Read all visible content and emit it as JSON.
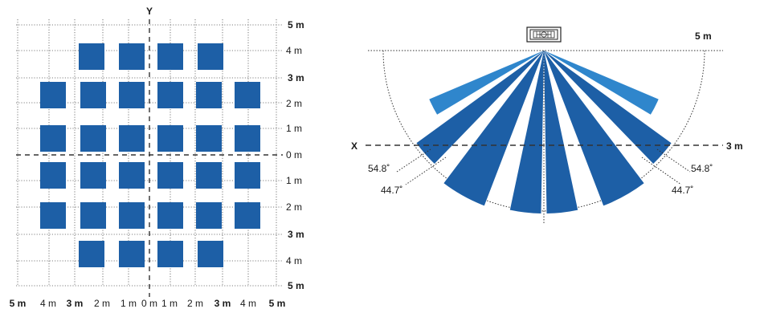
{
  "colors": {
    "zone": "#1d5fa6",
    "zone_light": "#2f86cc",
    "line": "#333333"
  },
  "top_view": {
    "y_axis_label": "Y",
    "row_labels": [
      {
        "text": "5 m",
        "bold": true
      },
      {
        "text": "4 m",
        "bold": false
      },
      {
        "text": "3 m",
        "bold": true
      },
      {
        "text": "2 m",
        "bold": false
      },
      {
        "text": "1 m",
        "bold": false
      },
      {
        "text": "0 m",
        "bold": false
      },
      {
        "text": "1 m",
        "bold": false
      },
      {
        "text": "2 m",
        "bold": false
      },
      {
        "text": "3 m",
        "bold": true
      },
      {
        "text": "4 m",
        "bold": false
      },
      {
        "text": "5 m",
        "bold": true
      }
    ],
    "column_labels": [
      {
        "text": "5 m",
        "bold": true
      },
      {
        "text": "4 m",
        "bold": false
      },
      {
        "text": "3 m",
        "bold": true
      },
      {
        "text": "2 m",
        "bold": false
      },
      {
        "text": "1 m",
        "bold": false
      },
      {
        "text": "0 m",
        "bold": false
      },
      {
        "text": "1 m",
        "bold": false
      },
      {
        "text": "2 m",
        "bold": false
      },
      {
        "text": "3 m",
        "bold": true
      },
      {
        "text": "4 m",
        "bold": false
      },
      {
        "text": "5 m",
        "bold": true
      }
    ],
    "zone_counts_per_row": [
      4,
      6,
      6,
      6,
      6,
      4
    ]
  },
  "side_view": {
    "x_axis_label": "X",
    "range_top_label": "5 m",
    "range_right_label": "3 m",
    "angles": {
      "inner_left": "54.8˚",
      "outer_left": "44.7˚",
      "inner_right": "54.8˚",
      "outer_right": "44.7˚"
    },
    "beam_count": 8,
    "sensor_icon": "pir-sensor-icon"
  }
}
